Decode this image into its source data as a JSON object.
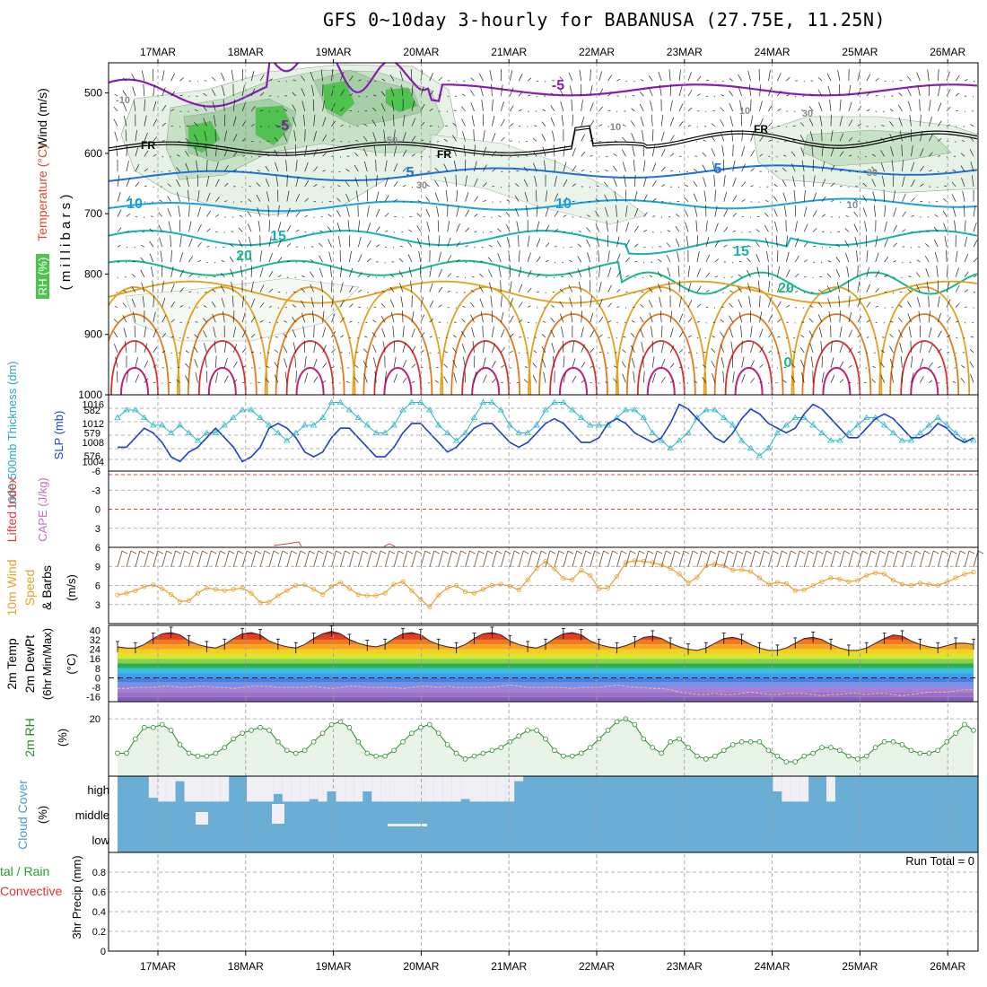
{
  "title": "GFS 0~10day 3-hourly for BABANUSA (27.75E, 11.25N)",
  "colors": {
    "grid": "#9a9a9a",
    "rh_light": "#e6f2e6",
    "rh_mid": "#c8e2c8",
    "rh_dark": "#a7cfa7",
    "rh_wet": "#4ec44e",
    "iso_purple": "#8a1cb6",
    "iso_blue": "#1e6fd6",
    "iso_lightblue": "#1aa0e0",
    "iso_teal": "#19b0b0",
    "iso_green": "#1ab88a",
    "iso_orange": "#e1a020",
    "iso_darkorange": "#e07a1e",
    "iso_red": "#d83030",
    "iso_magenta": "#c0207a",
    "slp_line": "#1c3fc9",
    "thk_line": "#28b8c8",
    "li_line": "#e04040",
    "wind_line": "#e8a030",
    "barb": "#7a5a3a",
    "temp_fill": "#8c1a1a",
    "dewpt_fill": "#a67fd6",
    "rh2m_line": "#2a8a2a",
    "rh2m_fill": "#e8f4e8",
    "cloud": "#6aaed6",
    "cloud_gap": "#f2eef6",
    "precip_total": "#2aa02a",
    "precip_conv": "#e03030"
  },
  "x_axis": {
    "dates": [
      "17MAR",
      "18MAR",
      "19MAR",
      "20MAR",
      "21MAR",
      "22MAR",
      "23MAR",
      "24MAR",
      "25MAR",
      "26MAR"
    ]
  },
  "panels": {
    "upper": {
      "ylabel_wind": "Wind (m/s)",
      "ylabel_temp": "Temperature (°C)",
      "ylabel_rh": "RH (%)",
      "ylabel_mb": "( m i l l i b a r s )",
      "yticks": [
        "500",
        "600",
        "700",
        "800",
        "900",
        "1000"
      ]
    },
    "thickness": {
      "ylabel_thk": "1000-500mb Thickness (dm)",
      "ylabel_slp": "SLP (mb)",
      "yticks_left": [
        "582",
        "579",
        "576"
      ],
      "yticks_right": [
        "1016",
        "1012",
        "1008",
        "1004"
      ]
    },
    "stability": {
      "ylabel_li": "Lifted Index",
      "ylabel_cape": "CAPE (J/kg)",
      "yticks": [
        "-6",
        "-3",
        "0",
        "3",
        "6"
      ]
    },
    "wind10m": {
      "ylabel_a": "10m Wind",
      "ylabel_b": "Speed",
      "ylabel_c": "& Barbs",
      "ylabel_unit": "(m/s)",
      "yticks": [
        "9",
        "6",
        "3"
      ]
    },
    "temp2m": {
      "ylabel_a": "2m Temp",
      "ylabel_b": "2m DewPt",
      "ylabel_c": "(6hr Min/Max)",
      "ylabel_unit": "(°C)",
      "yticks": [
        "40",
        "32",
        "24",
        "16",
        "8",
        "0",
        "-8",
        "-16"
      ]
    },
    "rh2m": {
      "ylabel": "2m RH",
      "ylabel_unit": "(%)",
      "yticks": [
        "20"
      ]
    },
    "cloud": {
      "ylabel": "Cloud Cover",
      "ylabel_unit": "(%)",
      "levels": [
        "high",
        "middle",
        "low"
      ]
    },
    "precip": {
      "ylabel_a": "tal / Rain",
      "ylabel_b": "Convective",
      "ylabel_c": "3hr Precip (mm)",
      "yticks": [
        "0.8",
        "0.6",
        "0.4",
        "0.2",
        "0"
      ],
      "run_total": "Run Total = 0"
    }
  },
  "chart_data": [
    {
      "type": "line",
      "subplot": "upper-air isotherms",
      "ylim": [
        1000,
        450
      ],
      "contour_labels": [
        "-5",
        "-5",
        "FR",
        "FR",
        "FR",
        "5",
        "5",
        "-10",
        "10",
        "10",
        "15",
        "15",
        "20",
        "20",
        "0",
        "10",
        "30",
        "50",
        "30",
        "30",
        "10",
        "10"
      ]
    },
    {
      "type": "line",
      "subplot": "thickness & SLP",
      "series": [
        {
          "name": "SLP (mb)",
          "ylim": [
            1002,
            1018
          ],
          "values": [
            1007,
            1007,
            1009,
            1011,
            1010,
            1008,
            1005,
            1004,
            1006,
            1007,
            1009,
            1011,
            1009,
            1007,
            1004,
            1005,
            1007,
            1011,
            1012,
            1011,
            1009,
            1006,
            1005,
            1006,
            1009,
            1011,
            1011,
            1009,
            1007,
            1005,
            1005,
            1007,
            1010,
            1012,
            1012,
            1010,
            1008,
            1006,
            1007,
            1009,
            1011,
            1012,
            1012,
            1010,
            1008,
            1007,
            1008,
            1010,
            1012,
            1013,
            1012,
            1010,
            1008,
            1008,
            1009,
            1012,
            1013,
            1012,
            1010,
            1009,
            1008,
            1009,
            1012,
            1016,
            1015,
            1013,
            1011,
            1009,
            1008,
            1010,
            1013,
            1015,
            1014,
            1012,
            1011,
            1010,
            1011,
            1014,
            1016,
            1015,
            1013,
            1011,
            1009,
            1009,
            1011,
            1013,
            1014,
            1013,
            1011,
            1009,
            1009,
            1010,
            1012,
            1011,
            1009,
            1008,
            1009
          ]
        },
        {
          "name": "1000-500mb Thickness (dm)",
          "ylim": [
            574,
            584
          ],
          "values": [
            581,
            582,
            582,
            581,
            580,
            580,
            579,
            580,
            579,
            578,
            579,
            579,
            580,
            581,
            582,
            582,
            581,
            580,
            579,
            578,
            579,
            580,
            580,
            581,
            583,
            583,
            582,
            581,
            580,
            579,
            579,
            580,
            582,
            583,
            583,
            582,
            580,
            579,
            578,
            579,
            581,
            583,
            583,
            582,
            580,
            579,
            579,
            580,
            582,
            583,
            583,
            582,
            581,
            580,
            580,
            580,
            581,
            582,
            582,
            581,
            579,
            578,
            577,
            578,
            579,
            581,
            582,
            582,
            581,
            580,
            578,
            577,
            576,
            577,
            579,
            580,
            581,
            581,
            580,
            579,
            578,
            578,
            579,
            580,
            581,
            581,
            580,
            579,
            578,
            578,
            579,
            580,
            581,
            580,
            579,
            578,
            578
          ]
        }
      ]
    },
    {
      "type": "line",
      "subplot": "stability",
      "ylim": [
        6,
        -6
      ],
      "series": [
        {
          "name": "Lifted Index",
          "values": [
            null,
            null,
            null,
            null,
            null,
            null,
            null,
            null,
            null,
            null,
            null,
            null,
            null,
            null,
            null,
            null,
            null,
            null,
            null,
            null,
            null,
            null,
            null,
            null,
            null,
            null,
            null,
            null,
            null,
            null,
            null,
            null,
            null,
            null,
            null,
            null,
            null,
            null,
            null,
            null,
            null,
            null,
            null,
            null,
            null,
            null,
            null,
            null,
            null,
            null,
            null,
            null,
            null,
            null,
            null,
            null,
            null,
            null,
            null,
            null,
            null,
            null,
            null,
            null,
            null,
            null,
            null,
            null,
            null,
            null,
            null,
            null,
            null,
            null,
            null,
            null,
            null,
            null,
            null,
            null,
            null,
            null,
            null,
            null,
            null,
            null,
            null,
            null,
            null,
            null,
            null,
            null,
            null,
            null,
            null,
            null,
            null
          ]
        }
      ]
    },
    {
      "type": "line",
      "subplot": "10m wind speed",
      "ylim": [
        0,
        12
      ],
      "series": [
        {
          "name": "10m Wind Speed",
          "values": [
            4.5,
            4.8,
            5.2,
            5.8,
            6.1,
            5.5,
            4.6,
            3.5,
            3.6,
            4.8,
            5.6,
            5.4,
            5.2,
            5.4,
            5.6,
            4.8,
            3.3,
            3.4,
            4.4,
            5.2,
            6.0,
            6.1,
            5.4,
            4.6,
            5.8,
            6.5,
            5.5,
            4.6,
            4.4,
            4.4,
            4.8,
            6.2,
            6.6,
            5.2,
            3.8,
            2.6,
            4.5,
            5.6,
            6.0,
            5.0,
            4.8,
            5.4,
            6.0,
            6.2,
            5.9,
            5.3,
            6.9,
            8.7,
            9.8,
            8.6,
            7.1,
            6.9,
            8.4,
            7.6,
            5.5,
            5.6,
            7.4,
            9.6,
            9.9,
            9.8,
            9.6,
            9.2,
            8.7,
            7.8,
            6.4,
            7.3,
            9.1,
            9.4,
            9.1,
            8.4,
            8.5,
            8.2,
            7.2,
            6.2,
            6.5,
            6.3,
            5.2,
            5.3,
            6.0,
            6.6,
            7.2,
            7.0,
            6.6,
            6.8,
            7.6,
            8.0,
            7.8,
            6.8,
            6.2,
            6.0,
            6.4,
            6.2,
            6.0,
            6.5,
            7.2,
            7.8,
            8.1
          ]
        }
      ]
    },
    {
      "type": "area",
      "subplot": "2m temp & dewpoint",
      "ylim": [
        -20,
        44
      ],
      "series": [
        {
          "name": "2m Temp",
          "values": [
            26,
            25,
            25,
            28,
            33,
            37,
            38,
            36,
            31,
            28,
            26,
            25,
            28,
            33,
            37,
            38,
            36,
            31,
            28,
            26,
            25,
            28,
            33,
            37,
            39,
            37,
            32,
            29,
            27,
            26,
            28,
            33,
            37,
            38,
            36,
            31,
            28,
            26,
            25,
            28,
            33,
            37,
            38,
            36,
            31,
            28,
            26,
            25,
            28,
            33,
            37,
            38,
            36,
            31,
            28,
            26,
            25,
            27,
            30,
            34,
            35,
            33,
            29,
            26,
            24,
            23,
            25,
            29,
            33,
            34,
            32,
            28,
            25,
            23,
            23,
            25,
            29,
            33,
            34,
            32,
            28,
            25,
            23,
            23,
            25,
            29,
            33,
            36,
            35,
            31,
            28,
            26,
            25,
            27,
            29,
            29,
            28
          ]
        },
        {
          "name": "2m DewPt",
          "values": [
            -9,
            -9,
            -8,
            -8,
            -8,
            -7,
            -7,
            -8,
            -8,
            -7,
            -7,
            -8,
            -8,
            -9,
            -8,
            -7,
            -7,
            -7,
            -8,
            -8,
            -8,
            -8,
            -7,
            -8,
            -9,
            -8,
            -7,
            -7,
            -8,
            -8,
            -8,
            -8,
            -9,
            -8,
            -7,
            -7,
            -8,
            -7,
            -8,
            -8,
            -8,
            -8,
            -8,
            -7,
            -6,
            -7,
            -8,
            -8,
            -8,
            -8,
            -8,
            -9,
            -8,
            -8,
            -8,
            -7,
            -6,
            -7,
            -8,
            -8,
            -9,
            -9,
            -10,
            -12,
            -13,
            -14,
            -14,
            -13,
            -14,
            -14,
            -13,
            -12,
            -13,
            -14,
            -14,
            -13,
            -13,
            -13,
            -14,
            -15,
            -14,
            -14,
            -13,
            -13,
            -14,
            -13,
            -13,
            -14,
            -15,
            -14,
            -13,
            -12,
            -12,
            -12,
            -11,
            -10,
            -10
          ]
        }
      ]
    },
    {
      "type": "line",
      "subplot": "2m RH",
      "ylim": [
        0,
        26
      ],
      "series": [
        {
          "name": "2m RH",
          "values": [
            8,
            8,
            13,
            17,
            17,
            18,
            16,
            11,
            8,
            7,
            7,
            8,
            10,
            13,
            15,
            16,
            17,
            16,
            12,
            9,
            8,
            9,
            12,
            15,
            18,
            19,
            17,
            12,
            8,
            7,
            7,
            9,
            12,
            15,
            17,
            18,
            15,
            11,
            8,
            6,
            7,
            8,
            9,
            10,
            12,
            14,
            16,
            16,
            13,
            9,
            7,
            7,
            8,
            10,
            13,
            16,
            19,
            20,
            18,
            13,
            10,
            8,
            12,
            13,
            10,
            7,
            6,
            7,
            9,
            11,
            12,
            12,
            12,
            9,
            7,
            5,
            5,
            7,
            8,
            10,
            10,
            9,
            7,
            6,
            7,
            10,
            12,
            12,
            11,
            9,
            8,
            8,
            9,
            12,
            15,
            18,
            16
          ]
        }
      ]
    },
    {
      "type": "bar",
      "subplot": "cloud cover (% clear at high level)",
      "ylim": [
        0,
        100
      ],
      "series": [
        {
          "name": "high cloud gap",
          "values": [
            0,
            0,
            0,
            0,
            85,
            100,
            100,
            20,
            100,
            100,
            100,
            100,
            100,
            0,
            0,
            100,
            100,
            100,
            70,
            100,
            100,
            100,
            90,
            100,
            60,
            100,
            100,
            100,
            60,
            100,
            100,
            100,
            100,
            100,
            100,
            100,
            100,
            100,
            100,
            90,
            100,
            100,
            100,
            100,
            100,
            20,
            0,
            0,
            0,
            0,
            0,
            0,
            0,
            0,
            0,
            0,
            0,
            0,
            0,
            0,
            0,
            0,
            0,
            0,
            0,
            0,
            0,
            0,
            0,
            0,
            0,
            0,
            0,
            0,
            60,
            100,
            100,
            100,
            0,
            0,
            100,
            0,
            0,
            0,
            0,
            0,
            0,
            0,
            0,
            0,
            0,
            0,
            0,
            0,
            0,
            0,
            0
          ]
        }
      ]
    },
    {
      "type": "bar",
      "subplot": "3hr precip",
      "ylim": [
        0,
        1
      ],
      "series": [
        {
          "name": "Total / Rain",
          "values": []
        },
        {
          "name": "Convective",
          "values": []
        }
      ]
    }
  ]
}
